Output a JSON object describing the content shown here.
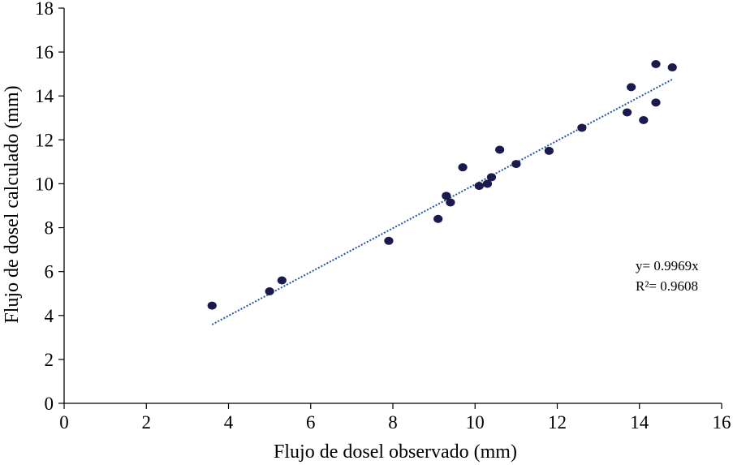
{
  "chart_data": {
    "type": "scatter",
    "xlabel": "Flujo de dosel observado (mm)",
    "ylabel": "Flujo de dosel calculado (mm)",
    "xlim": [
      0,
      16
    ],
    "ylim": [
      0,
      18
    ],
    "x_ticks": [
      "0",
      "2",
      "4",
      "6",
      "8",
      "10",
      "12",
      "14",
      "16"
    ],
    "y_ticks": [
      "0",
      "2",
      "4",
      "6",
      "8",
      "10",
      "12",
      "14",
      "16",
      "18"
    ],
    "grid": false,
    "marker_color": "#1a1a4e",
    "trendline_color": "#2255aa",
    "points": [
      {
        "x": 3.6,
        "y": 4.45
      },
      {
        "x": 5.0,
        "y": 5.1
      },
      {
        "x": 5.3,
        "y": 5.6
      },
      {
        "x": 7.9,
        "y": 7.4
      },
      {
        "x": 9.1,
        "y": 8.4
      },
      {
        "x": 9.3,
        "y": 9.45
      },
      {
        "x": 9.4,
        "y": 9.15
      },
      {
        "x": 9.7,
        "y": 10.75
      },
      {
        "x": 10.1,
        "y": 9.9
      },
      {
        "x": 10.3,
        "y": 10.0
      },
      {
        "x": 10.4,
        "y": 10.3
      },
      {
        "x": 10.6,
        "y": 11.55
      },
      {
        "x": 11.0,
        "y": 10.9
      },
      {
        "x": 11.8,
        "y": 11.5
      },
      {
        "x": 12.6,
        "y": 12.55
      },
      {
        "x": 13.7,
        "y": 13.25
      },
      {
        "x": 13.8,
        "y": 14.4
      },
      {
        "x": 14.1,
        "y": 12.9
      },
      {
        "x": 14.4,
        "y": 15.45
      },
      {
        "x": 14.4,
        "y": 13.7
      },
      {
        "x": 14.8,
        "y": 15.3
      }
    ],
    "trendline": {
      "slope": 0.9969,
      "x_range": [
        3.6,
        14.8
      ]
    },
    "annotations": [
      "y= 0.9969x",
      "R²= 0.9608"
    ]
  }
}
